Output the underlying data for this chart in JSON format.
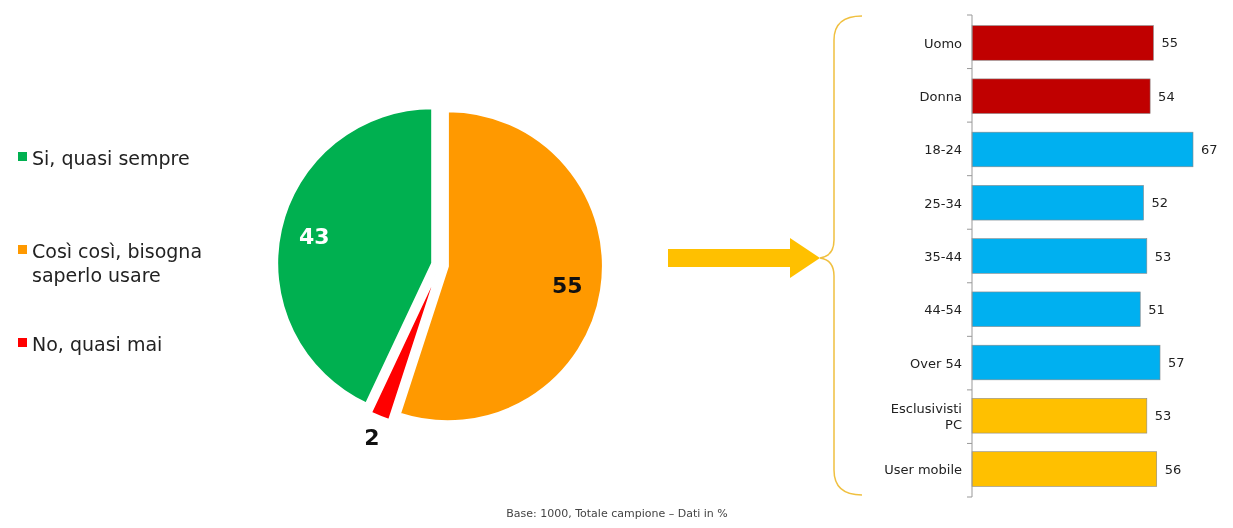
{
  "chart_data": [
    {
      "type": "pie",
      "categories": [
        "Si, quasi sempre",
        "Così così, bisogna saperlo usare",
        "No, quasi mai"
      ],
      "values": [
        43,
        55,
        2
      ],
      "colors": [
        "#00b050",
        "#ff9900",
        "#ff0000"
      ],
      "data_labels": true,
      "legend": "left"
    },
    {
      "type": "bar",
      "orientation": "horizontal",
      "categories": [
        "Uomo",
        "Donna",
        "18-24",
        "25-34",
        "35-44",
        "44-54",
        "Over 54",
        "Esclusivisti PC",
        "User mobile"
      ],
      "values": [
        55,
        54,
        67,
        52,
        53,
        51,
        57,
        53,
        56
      ],
      "colors": [
        "#c00000",
        "#c00000",
        "#00b0f0",
        "#00b0f0",
        "#00b0f0",
        "#00b0f0",
        "#00b0f0",
        "#ffc000",
        "#ffc000"
      ],
      "data_labels": true,
      "tick_labels": "y",
      "annotations": [
        "Base: 1000, Totale campione – Dati in %"
      ]
    }
  ]
}
